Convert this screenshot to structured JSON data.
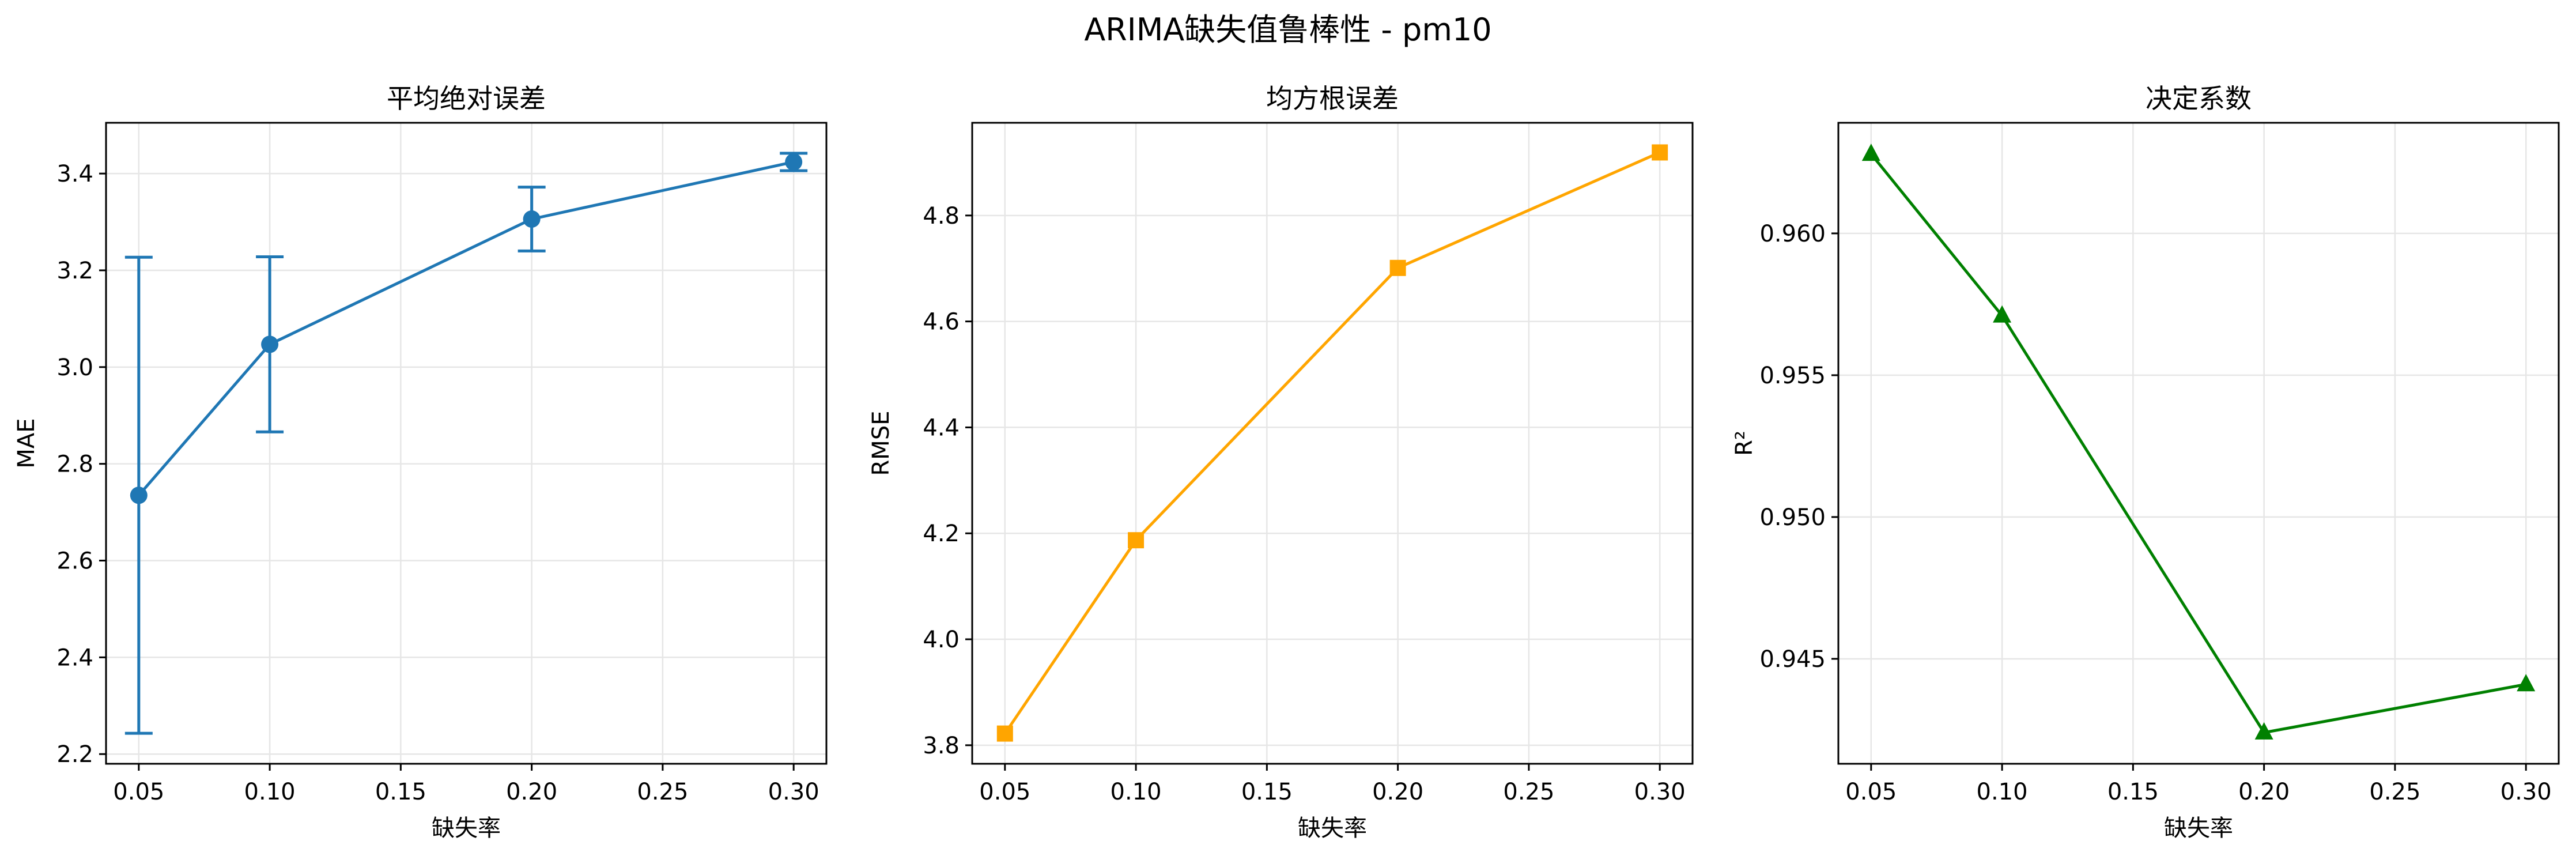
{
  "figure": {
    "title": "ARIMA缺失值鲁棒性 - pm10"
  },
  "chart_data": [
    {
      "type": "line",
      "title": "平均绝对误差",
      "xlabel": "缺失率",
      "ylabel": "MAE",
      "x": [
        0.05,
        0.1,
        0.2,
        0.3
      ],
      "xticks": [
        "0.05",
        "0.10",
        "0.15",
        "0.20",
        "0.25",
        "0.30"
      ],
      "yticks": [
        "2.2",
        "2.4",
        "2.6",
        "2.8",
        "3.0",
        "3.2",
        "3.4"
      ],
      "xlim": [
        0.0375,
        0.3125
      ],
      "ylim": [
        2.18,
        3.505
      ],
      "grid": true,
      "series": [
        {
          "values": [
            2.735,
            3.047,
            3.306,
            3.424
          ],
          "error": [
            0.492,
            0.181,
            0.066,
            0.018
          ],
          "color": "#1f77b4",
          "marker": "circle"
        }
      ]
    },
    {
      "type": "line",
      "title": "均方根误差",
      "xlabel": "缺失率",
      "ylabel": "RMSE",
      "x": [
        0.05,
        0.1,
        0.2,
        0.3
      ],
      "xticks": [
        "0.05",
        "0.10",
        "0.15",
        "0.20",
        "0.25",
        "0.30"
      ],
      "yticks": [
        "3.8",
        "4.0",
        "4.2",
        "4.4",
        "4.6",
        "4.8"
      ],
      "xlim": [
        0.0375,
        0.3125
      ],
      "ylim": [
        3.765,
        4.975
      ],
      "grid": true,
      "series": [
        {
          "values": [
            3.822,
            4.187,
            4.701,
            4.919
          ],
          "color": "#ffa500",
          "marker": "square"
        }
      ]
    },
    {
      "type": "line",
      "title": "决定系数",
      "xlabel": "缺失率",
      "ylabel": "R²",
      "x": [
        0.05,
        0.1,
        0.2,
        0.3
      ],
      "xticks": [
        "0.05",
        "0.10",
        "0.15",
        "0.20",
        "0.25",
        "0.30"
      ],
      "yticks": [
        "0.945",
        "0.950",
        "0.955",
        "0.960"
      ],
      "xlim": [
        0.0375,
        0.3125
      ],
      "ylim": [
        0.9413,
        0.9639
      ],
      "grid": true,
      "series": [
        {
          "values": [
            0.9628,
            0.9571,
            0.9424,
            0.9441
          ],
          "color": "#008000",
          "marker": "triangle"
        }
      ]
    }
  ]
}
